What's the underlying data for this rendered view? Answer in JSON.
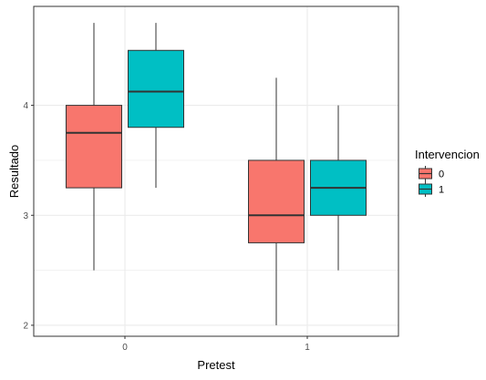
{
  "chart_data": {
    "type": "boxplot",
    "xlabel": "Pretest",
    "ylabel": "Resultado",
    "categories": [
      "0",
      "1"
    ],
    "ylim": [
      1.9,
      4.9
    ],
    "yticks": [
      2,
      3,
      4
    ],
    "grid": true,
    "legend": {
      "title": "Intervencion",
      "position": "right",
      "entries": [
        "0",
        "1"
      ]
    },
    "series": [
      {
        "name": "0",
        "color": "#F8766D",
        "boxes": [
          {
            "category": "0",
            "min": 2.5,
            "q1": 3.25,
            "median": 3.75,
            "q3": 4.0,
            "max": 4.75
          },
          {
            "category": "1",
            "min": 2.0,
            "q1": 2.75,
            "median": 3.0,
            "q3": 3.5,
            "max": 4.25
          }
        ]
      },
      {
        "name": "1",
        "color": "#00BFC4",
        "boxes": [
          {
            "category": "0",
            "min": 3.25,
            "q1": 3.8,
            "median": 4.125,
            "q3": 4.5,
            "max": 4.75
          },
          {
            "category": "1",
            "min": 2.5,
            "q1": 3.0,
            "median": 3.25,
            "q3": 3.5,
            "max": 4.0
          }
        ]
      }
    ]
  }
}
